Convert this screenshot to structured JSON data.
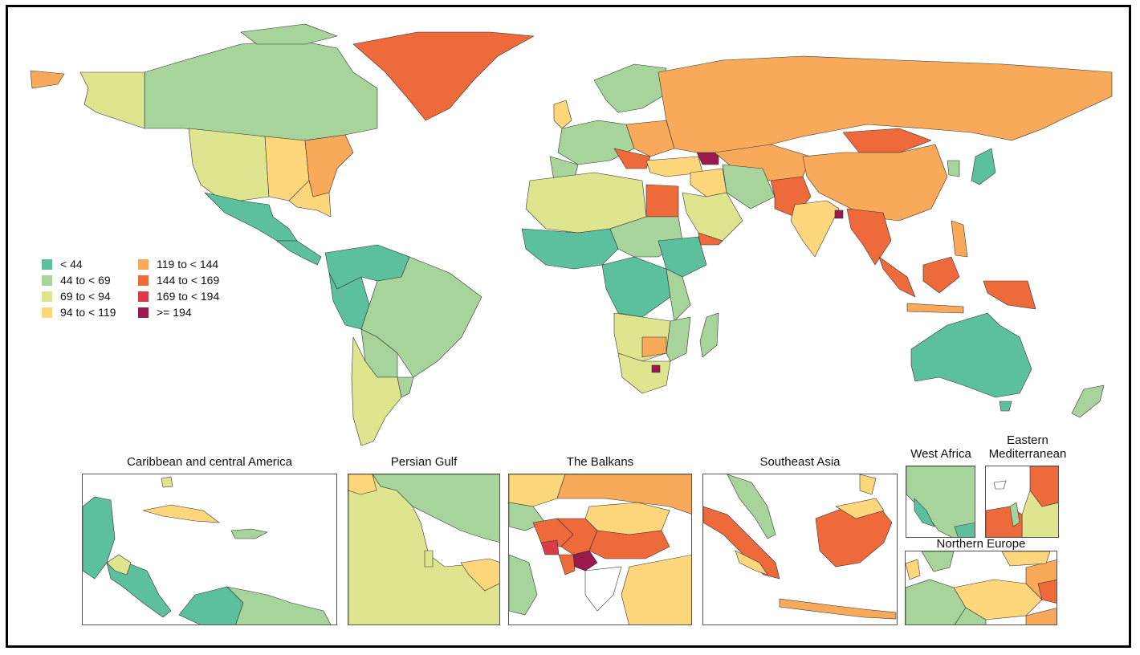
{
  "legend": {
    "items": [
      {
        "label": "< 44",
        "color": "#5cc09e"
      },
      {
        "label": "44 to < 69",
        "color": "#a6d49b"
      },
      {
        "label": "69 to < 94",
        "color": "#dfe58f"
      },
      {
        "label": "94 to < 119",
        "color": "#fed77c"
      },
      {
        "label": "119 to < 144",
        "color": "#f8a95a"
      },
      {
        "label": "144 to < 169",
        "color": "#ef6a3b"
      },
      {
        "label": "169 to < 194",
        "color": "#d93b4a"
      },
      {
        "label": ">= 194",
        "color": "#9b1a4e"
      }
    ]
  },
  "insets": {
    "caribbean": {
      "title": "Caribbean and central America"
    },
    "persian_gulf": {
      "title": "Persian Gulf"
    },
    "balkans": {
      "title": "The Balkans"
    },
    "southeast_asia": {
      "title": "Southeast Asia"
    },
    "west_africa": {
      "title": "West Africa"
    },
    "eastern_med": {
      "title": "Eastern Mediterranean"
    },
    "northern_europe": {
      "title": "Northern Europe"
    }
  },
  "colors": {
    "ocean": "#ffffff",
    "border": "#333333"
  }
}
